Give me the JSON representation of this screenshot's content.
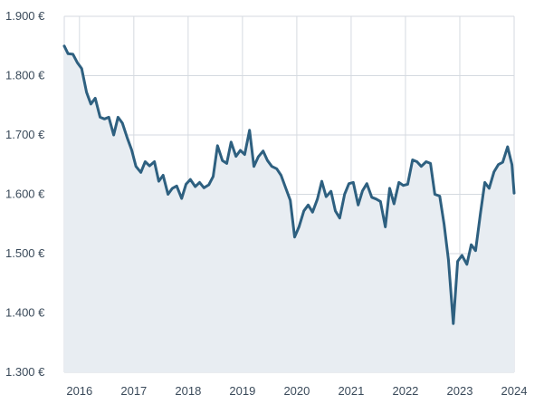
{
  "chart_data": {
    "type": "area",
    "title": "",
    "xlabel": "",
    "ylabel": "",
    "x_tick_labels": [
      "2016",
      "2017",
      "2018",
      "2019",
      "2020",
      "2021",
      "2022",
      "2023",
      "2024"
    ],
    "y_tick_labels": [
      "1.300 €",
      "1.400 €",
      "1.500 €",
      "1.600 €",
      "1.700 €",
      "1.800 €",
      "1.900 €"
    ],
    "y_ticks": [
      1300,
      1400,
      1500,
      1600,
      1700,
      1800,
      1900
    ],
    "ylim": [
      1300,
      1900
    ],
    "xlim": [
      2015.72,
      2024.0
    ],
    "grid": true,
    "colors": {
      "line": "#2e6080",
      "fill": "#e8edf2",
      "grid": "#d5dae0"
    },
    "series": [
      {
        "x": [
          2015.72,
          2015.79,
          2015.88,
          2015.96,
          2016.04,
          2016.13,
          2016.21,
          2016.29,
          2016.38,
          2016.46,
          2016.54,
          2016.63,
          2016.71,
          2016.79,
          2016.88,
          2016.96,
          2017.04,
          2017.13,
          2017.21,
          2017.29,
          2017.38,
          2017.46,
          2017.54,
          2017.63,
          2017.71,
          2017.79,
          2017.88,
          2017.96,
          2018.04,
          2018.13,
          2018.21,
          2018.29,
          2018.38,
          2018.46,
          2018.54,
          2018.63,
          2018.71,
          2018.79,
          2018.88,
          2018.96,
          2019.04,
          2019.13,
          2019.21,
          2019.29,
          2019.38,
          2019.46,
          2019.54,
          2019.63,
          2019.71,
          2019.79,
          2019.88,
          2019.96,
          2020.04,
          2020.13,
          2020.21,
          2020.29,
          2020.38,
          2020.46,
          2020.54,
          2020.63,
          2020.71,
          2020.79,
          2020.88,
          2020.96,
          2021.04,
          2021.13,
          2021.21,
          2021.29,
          2021.38,
          2021.46,
          2021.54,
          2021.63,
          2021.71,
          2021.79,
          2021.88,
          2021.96,
          2022.04,
          2022.13,
          2022.21,
          2022.29,
          2022.38,
          2022.46,
          2022.54,
          2022.63,
          2022.71,
          2022.79,
          2022.88,
          2022.96,
          2023.04,
          2023.13,
          2023.21,
          2023.29,
          2023.38,
          2023.46,
          2023.54,
          2023.63,
          2023.71,
          2023.79,
          2023.88,
          2023.96,
          2024.0
        ],
        "y": [
          1850,
          1837,
          1836,
          1822,
          1812,
          1772,
          1752,
          1762,
          1730,
          1727,
          1730,
          1700,
          1730,
          1720,
          1695,
          1675,
          1647,
          1637,
          1655,
          1648,
          1655,
          1622,
          1632,
          1600,
          1610,
          1614,
          1593,
          1617,
          1625,
          1613,
          1620,
          1611,
          1616,
          1630,
          1682,
          1657,
          1652,
          1688,
          1664,
          1674,
          1667,
          1708,
          1647,
          1663,
          1673,
          1657,
          1647,
          1643,
          1632,
          1612,
          1590,
          1528,
          1545,
          1572,
          1582,
          1570,
          1592,
          1622,
          1596,
          1605,
          1572,
          1560,
          1600,
          1618,
          1620,
          1582,
          1606,
          1618,
          1595,
          1592,
          1588,
          1545,
          1610,
          1584,
          1620,
          1615,
          1617,
          1658,
          1655,
          1647,
          1655,
          1652,
          1600,
          1597,
          1550,
          1490,
          1382,
          1487,
          1497,
          1482,
          1515,
          1505,
          1568,
          1620,
          1610,
          1638,
          1650,
          1654,
          1680,
          1650,
          1602
        ]
      }
    ]
  }
}
